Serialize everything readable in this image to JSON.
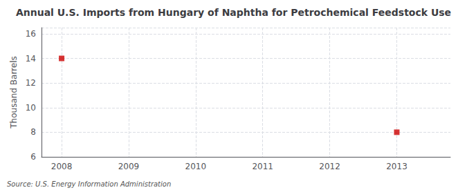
{
  "chart_data": {
    "type": "scatter",
    "title": "Annual U.S. Imports from Hungary of Naphtha for Petrochemical Feedstock Use",
    "ylabel": "Thousand Barrels",
    "annotation": "Source: U.S. Energy Information Administration",
    "x": [
      2008,
      2013
    ],
    "values": [
      14,
      8
    ],
    "color": "#cc0000",
    "marker": "square",
    "xlim": [
      2007.7,
      2013.8
    ],
    "xticks": [
      2008,
      2009,
      2010,
      2011,
      2012,
      2013
    ],
    "ylim": [
      6,
      16.5
    ],
    "yticks": [
      6,
      8,
      10,
      12,
      14,
      16
    ],
    "grid": true
  }
}
